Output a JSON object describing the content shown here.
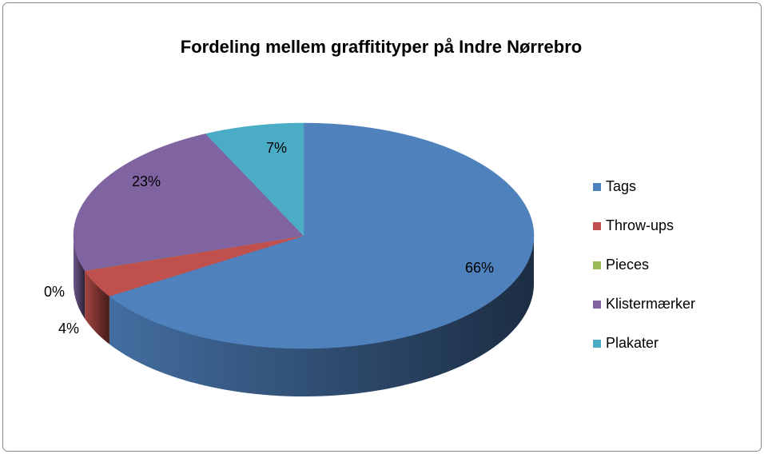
{
  "chart_data": {
    "type": "pie3d",
    "title": "Fordeling mellem graffitityper på Indre Nørrebro",
    "categories": [
      "Tags",
      "Throw-ups",
      "Pieces",
      "Klistermærker",
      "Plakater"
    ],
    "values": [
      66,
      4,
      0,
      23,
      7
    ],
    "value_labels": [
      "66%",
      "4%",
      "0%",
      "23%",
      "7%"
    ],
    "colors": [
      "#4f81bd",
      "#c0504d",
      "#9bbb59",
      "#8064a2",
      "#4bacc6"
    ],
    "legend": "right"
  }
}
